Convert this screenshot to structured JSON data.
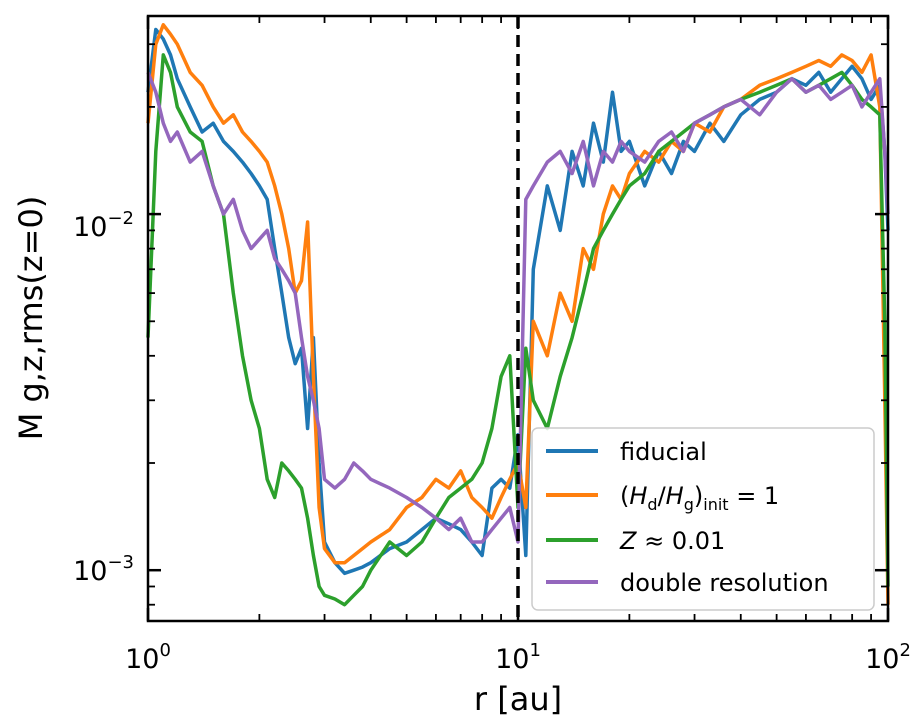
{
  "chart_data": {
    "type": "line",
    "title": "",
    "xlabel": "r [au]",
    "ylabel": "M g,z,rms(z=0)",
    "xscale": "log",
    "yscale": "log",
    "xlim": [
      1,
      100
    ],
    "ylim": [
      0.00072,
      0.036
    ],
    "x_tick_labels": [
      {
        "value": 1,
        "base": "10",
        "exp": "0"
      },
      {
        "value": 10,
        "base": "10",
        "exp": "1"
      },
      {
        "value": 100,
        "base": "10",
        "exp": "2"
      }
    ],
    "y_tick_labels": [
      {
        "value": 0.001,
        "base": "10",
        "exp": "−3"
      },
      {
        "value": 0.01,
        "base": "10",
        "exp": "−2"
      }
    ],
    "vline": {
      "x": 10,
      "style": "dashed",
      "color": "#000000"
    },
    "legend_position": "lower-right",
    "series": [
      {
        "name": "fiducial",
        "label": "fiducial",
        "color": "#1f77b4",
        "x": [
          1.0,
          1.05,
          1.1,
          1.15,
          1.2,
          1.3,
          1.4,
          1.5,
          1.6,
          1.7,
          1.8,
          1.9,
          2.0,
          2.1,
          2.2,
          2.3,
          2.4,
          2.5,
          2.6,
          2.7,
          2.8,
          2.9,
          3.0,
          3.2,
          3.4,
          3.6,
          3.8,
          4.0,
          4.5,
          5.0,
          5.5,
          6.0,
          6.5,
          7.0,
          7.5,
          8.0,
          8.5,
          9.0,
          9.5,
          10.0,
          10.5,
          11,
          12,
          13,
          14,
          15,
          16,
          17,
          18,
          19,
          20,
          22,
          24,
          26,
          28,
          30,
          33,
          36,
          40,
          45,
          50,
          55,
          60,
          65,
          70,
          75,
          80,
          85,
          90,
          95,
          98,
          100
        ],
        "y": [
          0.022,
          0.033,
          0.031,
          0.028,
          0.024,
          0.02,
          0.017,
          0.018,
          0.016,
          0.015,
          0.014,
          0.013,
          0.012,
          0.011,
          0.008,
          0.006,
          0.0045,
          0.0038,
          0.0042,
          0.0025,
          0.0045,
          0.002,
          0.0012,
          0.00105,
          0.00098,
          0.001,
          0.00102,
          0.00105,
          0.00115,
          0.0012,
          0.0013,
          0.0014,
          0.00135,
          0.0013,
          0.0012,
          0.0011,
          0.0017,
          0.0018,
          0.0017,
          0.0024,
          0.0011,
          0.007,
          0.012,
          0.009,
          0.015,
          0.012,
          0.018,
          0.014,
          0.022,
          0.015,
          0.016,
          0.012,
          0.015,
          0.013,
          0.016,
          0.015,
          0.018,
          0.016,
          0.019,
          0.021,
          0.022,
          0.024,
          0.023,
          0.025,
          0.022,
          0.024,
          0.026,
          0.024,
          0.021,
          0.023,
          0.015,
          0.009
        ]
      },
      {
        "name": "(Hd/Hg)init = 1",
        "label": "(H",
        "color": "#ff7f0e",
        "x": [
          1.0,
          1.05,
          1.1,
          1.15,
          1.2,
          1.3,
          1.4,
          1.5,
          1.6,
          1.7,
          1.8,
          1.9,
          2.0,
          2.1,
          2.2,
          2.3,
          2.4,
          2.5,
          2.6,
          2.7,
          2.8,
          2.9,
          3.0,
          3.2,
          3.4,
          3.6,
          3.8,
          4.0,
          4.5,
          5.0,
          5.5,
          6.0,
          6.5,
          7.0,
          7.5,
          8.0,
          8.5,
          9.0,
          9.5,
          10.0,
          10.5,
          11,
          12,
          13,
          14,
          15,
          16,
          17,
          18,
          19,
          20,
          22,
          24,
          26,
          28,
          30,
          33,
          36,
          40,
          45,
          50,
          55,
          60,
          65,
          70,
          75,
          80,
          85,
          90,
          95,
          98,
          100
        ],
        "y": [
          0.018,
          0.03,
          0.034,
          0.032,
          0.03,
          0.025,
          0.023,
          0.02,
          0.018,
          0.019,
          0.017,
          0.016,
          0.015,
          0.014,
          0.012,
          0.01,
          0.008,
          0.006,
          0.0065,
          0.0095,
          0.0035,
          0.0015,
          0.00115,
          0.00105,
          0.00105,
          0.0011,
          0.00115,
          0.0012,
          0.0013,
          0.0015,
          0.0016,
          0.0018,
          0.0017,
          0.0019,
          0.0016,
          0.0015,
          0.0014,
          0.0016,
          0.0018,
          0.002,
          0.0015,
          0.005,
          0.004,
          0.006,
          0.005,
          0.008,
          0.007,
          0.01,
          0.012,
          0.011,
          0.013,
          0.015,
          0.014,
          0.016,
          0.015,
          0.018,
          0.017,
          0.02,
          0.021,
          0.023,
          0.024,
          0.025,
          0.026,
          0.027,
          0.026,
          0.028,
          0.027,
          0.025,
          0.028,
          0.02,
          0.003,
          0.0008
        ]
      },
      {
        "name": "Z ≈ 0.01",
        "label": "Z ≈ 0.01",
        "color": "#2ca02c",
        "x": [
          1.0,
          1.05,
          1.1,
          1.15,
          1.2,
          1.3,
          1.4,
          1.5,
          1.6,
          1.7,
          1.8,
          1.9,
          2.0,
          2.1,
          2.2,
          2.3,
          2.4,
          2.5,
          2.6,
          2.7,
          2.8,
          2.9,
          3.0,
          3.2,
          3.4,
          3.6,
          3.8,
          4.0,
          4.5,
          5.0,
          5.5,
          6.0,
          6.5,
          7.0,
          7.5,
          8.0,
          8.5,
          9.0,
          9.5,
          10.0,
          10.5,
          11,
          12,
          13,
          14,
          15,
          16,
          17,
          18,
          19,
          20,
          22,
          24,
          26,
          28,
          30,
          33,
          36,
          40,
          45,
          50,
          55,
          60,
          65,
          70,
          75,
          80,
          85,
          90,
          95,
          98,
          100
        ],
        "y": [
          0.0045,
          0.015,
          0.028,
          0.025,
          0.02,
          0.017,
          0.016,
          0.012,
          0.01,
          0.006,
          0.004,
          0.003,
          0.0025,
          0.0018,
          0.0016,
          0.002,
          0.0019,
          0.0018,
          0.0017,
          0.0014,
          0.0011,
          0.0009,
          0.00085,
          0.00083,
          0.0008,
          0.00085,
          0.0009,
          0.001,
          0.0012,
          0.0011,
          0.0012,
          0.0014,
          0.0016,
          0.0017,
          0.0018,
          0.002,
          0.0025,
          0.0035,
          0.004,
          0.0015,
          0.0042,
          0.003,
          0.0025,
          0.0035,
          0.0045,
          0.006,
          0.008,
          0.009,
          0.01,
          0.011,
          0.012,
          0.013,
          0.015,
          0.016,
          0.017,
          0.018,
          0.019,
          0.02,
          0.021,
          0.022,
          0.023,
          0.024,
          0.022,
          0.023,
          0.024,
          0.025,
          0.023,
          0.021,
          0.02,
          0.019,
          0.005,
          0.0009
        ]
      },
      {
        "name": "double resolution",
        "label": "double resolution",
        "color": "#9467bd",
        "x": [
          1.0,
          1.05,
          1.1,
          1.15,
          1.2,
          1.3,
          1.4,
          1.5,
          1.6,
          1.7,
          1.8,
          1.9,
          2.0,
          2.1,
          2.2,
          2.3,
          2.4,
          2.5,
          2.6,
          2.7,
          2.8,
          2.9,
          3.0,
          3.2,
          3.4,
          3.6,
          3.8,
          4.0,
          4.5,
          5.0,
          5.5,
          6.0,
          6.5,
          7.0,
          7.5,
          8.0,
          8.5,
          9.0,
          9.5,
          10.0,
          10.5,
          11,
          12,
          13,
          14,
          15,
          16,
          17,
          18,
          19,
          20,
          22,
          24,
          26,
          28,
          30,
          33,
          36,
          40,
          45,
          50,
          55,
          60,
          65,
          70,
          75,
          80,
          85,
          90,
          95,
          98,
          100
        ],
        "y": [
          0.025,
          0.022,
          0.018,
          0.016,
          0.017,
          0.014,
          0.015,
          0.012,
          0.01,
          0.011,
          0.009,
          0.008,
          0.0085,
          0.009,
          0.0075,
          0.007,
          0.0065,
          0.006,
          0.0045,
          0.0035,
          0.003,
          0.0025,
          0.0018,
          0.0017,
          0.0018,
          0.002,
          0.0019,
          0.0018,
          0.0017,
          0.0016,
          0.0015,
          0.0014,
          0.0013,
          0.0014,
          0.0012,
          0.0012,
          0.0013,
          0.0014,
          0.0015,
          0.0012,
          0.011,
          0.012,
          0.014,
          0.015,
          0.013,
          0.016,
          0.012,
          0.015,
          0.014,
          0.016,
          0.015,
          0.014,
          0.016,
          0.017,
          0.015,
          0.018,
          0.019,
          0.02,
          0.021,
          0.019,
          0.022,
          0.024,
          0.022,
          0.023,
          0.021,
          0.022,
          0.023,
          0.02,
          0.022,
          0.024,
          0.015,
          0.01
        ]
      }
    ],
    "legend": {
      "entries": [
        {
          "text": "fiducial"
        },
        {
          "text_parts": [
            "(",
            "H",
            "d",
            "/",
            "H",
            "g",
            ")",
            "init",
            " = 1"
          ]
        },
        {
          "text_parts": [
            "Z",
            " ≈ 0.01"
          ]
        },
        {
          "text": "double resolution"
        }
      ]
    }
  }
}
